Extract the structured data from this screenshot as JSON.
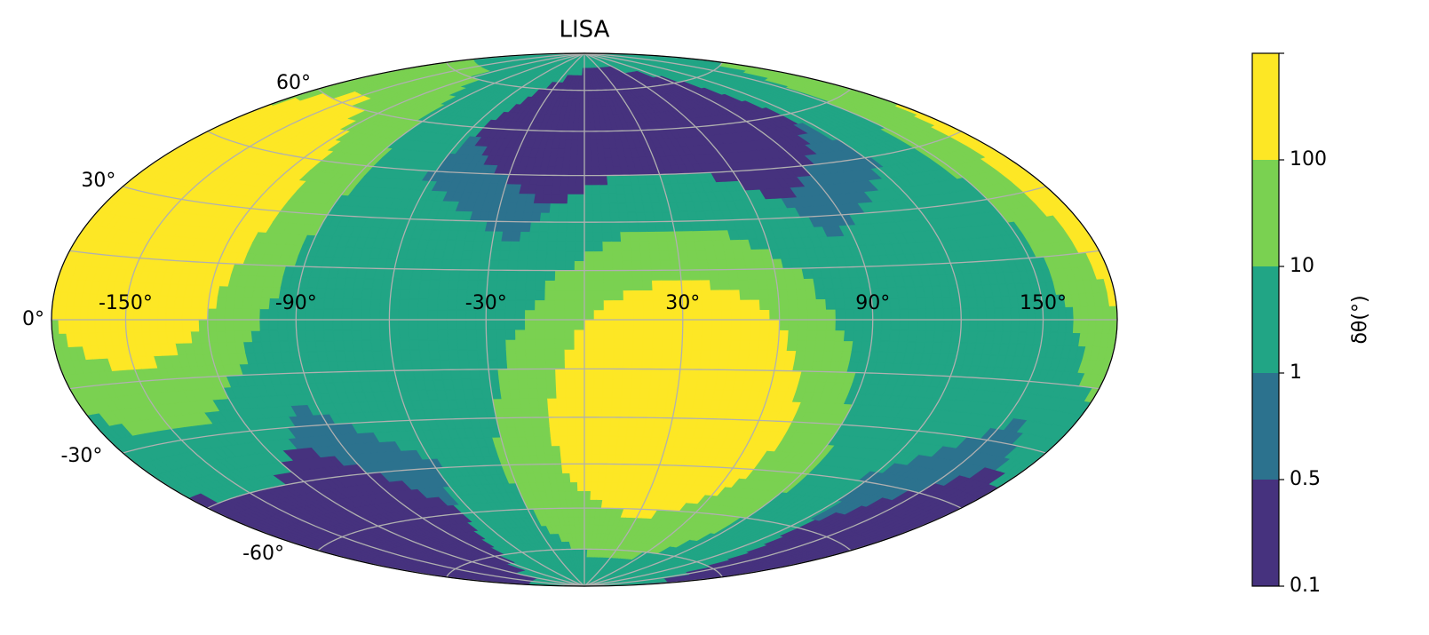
{
  "chart_data": {
    "type": "map",
    "projection": "hammer",
    "title": "LISA",
    "xticks": [
      {
        "value": -180,
        "label": null
      },
      {
        "value": -150,
        "label": "-150°"
      },
      {
        "value": -120,
        "label": null
      },
      {
        "value": -90,
        "label": "-90°"
      },
      {
        "value": -60,
        "label": null
      },
      {
        "value": -30,
        "label": "-30°"
      },
      {
        "value": 0,
        "label": null
      },
      {
        "value": 30,
        "label": "30°"
      },
      {
        "value": 60,
        "label": null
      },
      {
        "value": 90,
        "label": "90°"
      },
      {
        "value": 120,
        "label": null
      },
      {
        "value": 150,
        "label": "150°"
      },
      {
        "value": 180,
        "label": null
      }
    ],
    "yticks": [
      {
        "value": -75,
        "label": null
      },
      {
        "value": -60,
        "label": "-60°"
      },
      {
        "value": -45,
        "label": null
      },
      {
        "value": -30,
        "label": "-30°"
      },
      {
        "value": -15,
        "label": null
      },
      {
        "value": 0,
        "label": "0°"
      },
      {
        "value": 15,
        "label": null
      },
      {
        "value": 30,
        "label": "30°"
      },
      {
        "value": 45,
        "label": null
      },
      {
        "value": 60,
        "label": "60°"
      },
      {
        "value": 75,
        "label": null
      }
    ],
    "grid": true,
    "grid_color": "#b0b0b0",
    "colorbar": {
      "label": "δθ(°)",
      "ticks": [
        0.1,
        0.5,
        1,
        10,
        100
      ],
      "colors": [
        "#46327e",
        "#2c728e",
        "#21a585",
        "#7ad151",
        "#fde725"
      ]
    }
  }
}
